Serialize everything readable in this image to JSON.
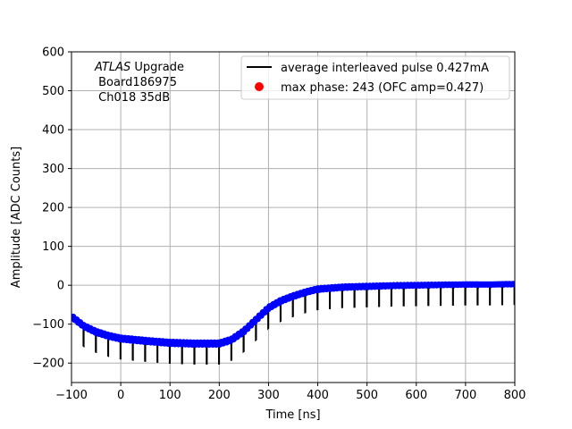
{
  "chart_data": {
    "type": "line",
    "xlabel": "Time [ns]",
    "ylabel": "Amplitude [ADC Counts]",
    "xlim": [
      -100,
      800
    ],
    "ylim": [
      -250,
      600
    ],
    "xticks": [
      -100,
      0,
      100,
      200,
      300,
      400,
      500,
      600,
      700,
      800
    ],
    "yticks": [
      -200,
      -100,
      0,
      100,
      200,
      300,
      400,
      500,
      600
    ],
    "xtick_labels": [
      "−100",
      "0",
      "100",
      "200",
      "300",
      "400",
      "500",
      "600",
      "700",
      "800"
    ],
    "ytick_labels": [
      "−200",
      "−100",
      "0",
      "100",
      "200",
      "300",
      "400",
      "500",
      "600"
    ],
    "grid": true,
    "legend_placement": "top-right",
    "annotation": {
      "line1_italic": "ATLAS",
      "line1_rest": " Upgrade",
      "line2": " Board186975",
      "line3": " Ch018 35dB"
    },
    "series": [
      {
        "name": "average interleaved pulse 0.427mA",
        "color": "#000000",
        "style": "line",
        "note": "upper envelope with periodic drops of ~50 counts every 25 ns",
        "upper_envelope": {
          "x": [
            -100,
            -75,
            -50,
            -25,
            0,
            50,
            100,
            150,
            200,
            225,
            250,
            275,
            300,
            325,
            350,
            375,
            400,
            450,
            500,
            550,
            600,
            650,
            700,
            750,
            800
          ],
          "y": [
            -80,
            -105,
            -120,
            -130,
            -137,
            -143,
            -148,
            -150,
            -150,
            -140,
            -118,
            -88,
            -58,
            -40,
            -28,
            -18,
            -10,
            -5,
            -3,
            -1,
            0,
            1,
            2,
            2,
            3
          ]
        },
        "drop_period_ns": 25,
        "drop_depth": 52
      },
      {
        "name": "",
        "color": "#0000ff",
        "style": "markers",
        "note": "blue markers tracing the upper envelope"
      }
    ],
    "legend": [
      {
        "label": "average interleaved pulse 0.427mA",
        "color": "#000000",
        "kind": "line"
      },
      {
        "label": "max phase: 243 (OFC amp=0.427)",
        "color": "#ff0000",
        "kind": "dot"
      }
    ],
    "colors": {
      "grid": "#b0b0b0",
      "axes": "#000000",
      "markers": "#0000ff",
      "max_dot": "#ff0000"
    }
  }
}
